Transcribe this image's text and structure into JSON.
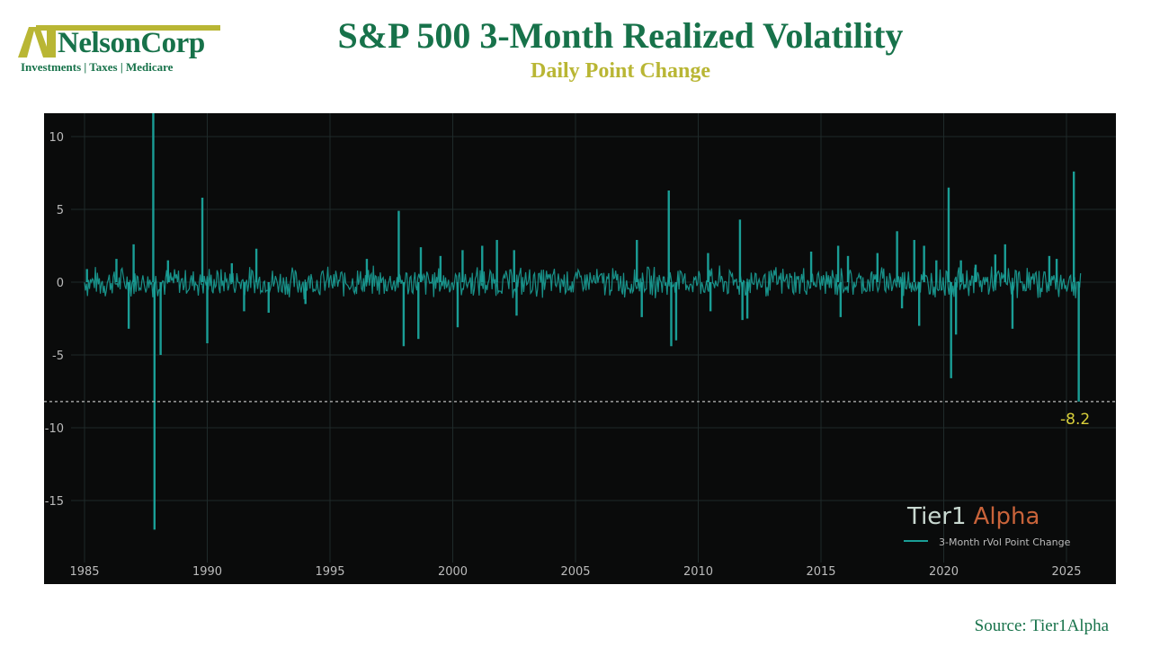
{
  "logo": {
    "name": "NelsonCorp",
    "tagline": "Investments | Taxes | Medicare"
  },
  "title": "S&P 500 3-Month Realized Volatility",
  "subtitle": "Daily Point Change",
  "source": "Source: Tier1Alpha",
  "watermark": {
    "part1": "Tier1",
    "part2": "Alpha"
  },
  "colors": {
    "series": "#1a9e96",
    "annotation": "#d8cf3a",
    "brand_green": "#17724a",
    "brand_gold": "#b9b634",
    "accent": "#c8633a"
  },
  "chart_data": {
    "type": "line",
    "title": "S&P 500 3-Month Realized Volatility",
    "subtitle": "Daily Point Change",
    "xlabel": "",
    "ylabel": "",
    "xlim": [
      1984.8,
      2027.0
    ],
    "ylim": [
      -18.5,
      11.6
    ],
    "xticks": [
      1985,
      1990,
      1995,
      2000,
      2005,
      2010,
      2015,
      2020,
      2025
    ],
    "yticks": [
      10,
      5,
      0,
      -5,
      -10,
      -15
    ],
    "grid": true,
    "legend": {
      "label": "3-Month rVol Point Change",
      "placement": "bottom-right"
    },
    "series": [
      {
        "name": "3-Month rVol Point Change",
        "spikes": [
          [
            1985.1,
            0.9
          ],
          [
            1986.3,
            1.6
          ],
          [
            1986.8,
            -3.2
          ],
          [
            1987.0,
            2.6
          ],
          [
            1987.8,
            11.8
          ],
          [
            1987.85,
            -17.0
          ],
          [
            1988.1,
            -5.0
          ],
          [
            1988.4,
            1.5
          ],
          [
            1989.8,
            5.8
          ],
          [
            1990.0,
            -4.2
          ],
          [
            1991.0,
            1.3
          ],
          [
            1991.5,
            -2.0
          ],
          [
            1992.0,
            2.3
          ],
          [
            1992.5,
            -2.1
          ],
          [
            1994.0,
            -1.5
          ],
          [
            1996.5,
            1.6
          ],
          [
            1997.8,
            4.9
          ],
          [
            1998.0,
            -4.4
          ],
          [
            1998.6,
            -3.9
          ],
          [
            1998.7,
            2.4
          ],
          [
            1999.5,
            1.8
          ],
          [
            2000.2,
            -3.1
          ],
          [
            2000.4,
            2.2
          ],
          [
            2001.2,
            2.5
          ],
          [
            2001.8,
            2.9
          ],
          [
            2002.5,
            2.2
          ],
          [
            2002.6,
            -2.3
          ],
          [
            2007.5,
            2.9
          ],
          [
            2007.7,
            -2.4
          ],
          [
            2008.8,
            6.3
          ],
          [
            2008.9,
            -4.4
          ],
          [
            2009.1,
            -4.0
          ],
          [
            2010.4,
            2.0
          ],
          [
            2010.5,
            -2.0
          ],
          [
            2011.7,
            4.3
          ],
          [
            2011.8,
            -2.6
          ],
          [
            2012.0,
            -2.5
          ],
          [
            2014.6,
            2.1
          ],
          [
            2015.7,
            2.5
          ],
          [
            2015.8,
            -2.4
          ],
          [
            2016.1,
            1.8
          ],
          [
            2017.3,
            2.0
          ],
          [
            2018.1,
            3.5
          ],
          [
            2018.3,
            -1.8
          ],
          [
            2018.8,
            2.9
          ],
          [
            2019.0,
            -3.0
          ],
          [
            2019.2,
            2.5
          ],
          [
            2019.7,
            1.5
          ],
          [
            2020.2,
            6.5
          ],
          [
            2020.3,
            -6.6
          ],
          [
            2020.5,
            -3.6
          ],
          [
            2020.7,
            1.5
          ],
          [
            2021.3,
            1.2
          ],
          [
            2022.1,
            1.9
          ],
          [
            2022.5,
            2.6
          ],
          [
            2022.8,
            -3.2
          ],
          [
            2024.3,
            1.8
          ],
          [
            2024.6,
            1.6
          ],
          [
            2025.3,
            7.6
          ],
          [
            2025.5,
            -8.2
          ]
        ]
      }
    ],
    "reference_line": {
      "y": -8.2,
      "label": "-8.2"
    }
  }
}
